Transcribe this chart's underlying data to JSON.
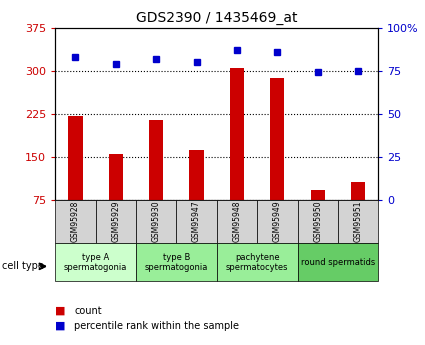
{
  "title": "GDS2390 / 1435469_at",
  "samples": [
    "GSM95928",
    "GSM95929",
    "GSM95930",
    "GSM95947",
    "GSM95948",
    "GSM95949",
    "GSM95950",
    "GSM95951"
  ],
  "count_values": [
    222,
    155,
    215,
    162,
    305,
    288,
    92,
    107
  ],
  "percentile_values": [
    83,
    79,
    82,
    80,
    87,
    86,
    74,
    75
  ],
  "ylim_left": [
    75,
    375
  ],
  "ylim_right": [
    0,
    100
  ],
  "yticks_left": [
    75,
    150,
    225,
    300,
    375
  ],
  "yticks_right": [
    0,
    25,
    50,
    75,
    100
  ],
  "ytick_right_labels": [
    "0",
    "25",
    "50",
    "75",
    "100%"
  ],
  "bar_color": "#cc0000",
  "dot_color": "#0000cc",
  "ct_data": [
    {
      "start": 0,
      "end": 2,
      "label": "type A\nspermatogonia",
      "color": "#ccffcc"
    },
    {
      "start": 2,
      "end": 4,
      "label": "type B\nspermatogonia",
      "color": "#99ee99"
    },
    {
      "start": 4,
      "end": 6,
      "label": "pachytene\nspermatocytes",
      "color": "#99ee99"
    },
    {
      "start": 6,
      "end": 8,
      "label": "round spermatids",
      "color": "#66cc66"
    }
  ],
  "legend_count_label": "count",
  "legend_pct_label": "percentile rank within the sample",
  "cell_type_label": "cell type"
}
